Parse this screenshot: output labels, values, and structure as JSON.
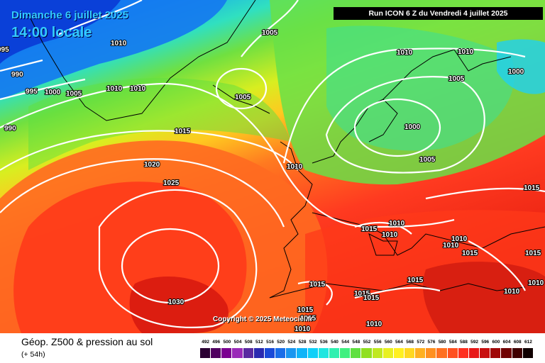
{
  "title": {
    "date": "Dimanche 6 juillet 2025",
    "time": "14:00 locale"
  },
  "run_info": "Run ICON 6 Z du Vendredi 4 juillet 2025",
  "copyright": "Copyright © 2025 Meteociel.fr",
  "parameter": {
    "name": "Géop. Z500 & pression au sol",
    "lead": "(+ 54h)"
  },
  "isobar_labels": [
    "1005",
    "995",
    "1010",
    "990",
    "995",
    "1000",
    "1005",
    "1010",
    "1010",
    "990",
    "1005",
    "1015",
    "1020",
    "1025",
    "1030",
    "1010",
    "1010",
    "1000",
    "1005",
    "1010",
    "1000",
    "1005",
    "1015",
    "1015",
    "1010",
    "1010",
    "1010",
    "1015",
    "1015",
    "1015",
    "1015",
    "1010",
    "1015",
    "1015",
    "1010",
    "1010",
    "1015",
    "1015",
    "1010",
    "1010"
  ],
  "legend": {
    "values": [
      "492",
      "496",
      "500",
      "504",
      "508",
      "512",
      "516",
      "520",
      "524",
      "528",
      "532",
      "536",
      "540",
      "544",
      "548",
      "552",
      "556",
      "560",
      "564",
      "568",
      "572",
      "576",
      "580",
      "584",
      "588",
      "592",
      "596",
      "600",
      "604",
      "608",
      "612"
    ],
    "colors": [
      "#2b0033",
      "#500060",
      "#7a0090",
      "#9a2ab8",
      "#5a2aa0",
      "#2a2ab0",
      "#1a4ad8",
      "#1a6ee8",
      "#1a96f0",
      "#10b4f8",
      "#10d0f8",
      "#20e6e0",
      "#30f0b0",
      "#40f080",
      "#60e040",
      "#90e020",
      "#c0e820",
      "#e8f020",
      "#fff020",
      "#ffd820",
      "#ffb020",
      "#ff9020",
      "#ff7020",
      "#ff5020",
      "#ff3020",
      "#e81818",
      "#c81010",
      "#a00808",
      "#700000",
      "#400000",
      "#100000"
    ]
  },
  "colors": {
    "isobar": "#ffffff",
    "coastline": "#000000",
    "title": "#33ccff"
  }
}
